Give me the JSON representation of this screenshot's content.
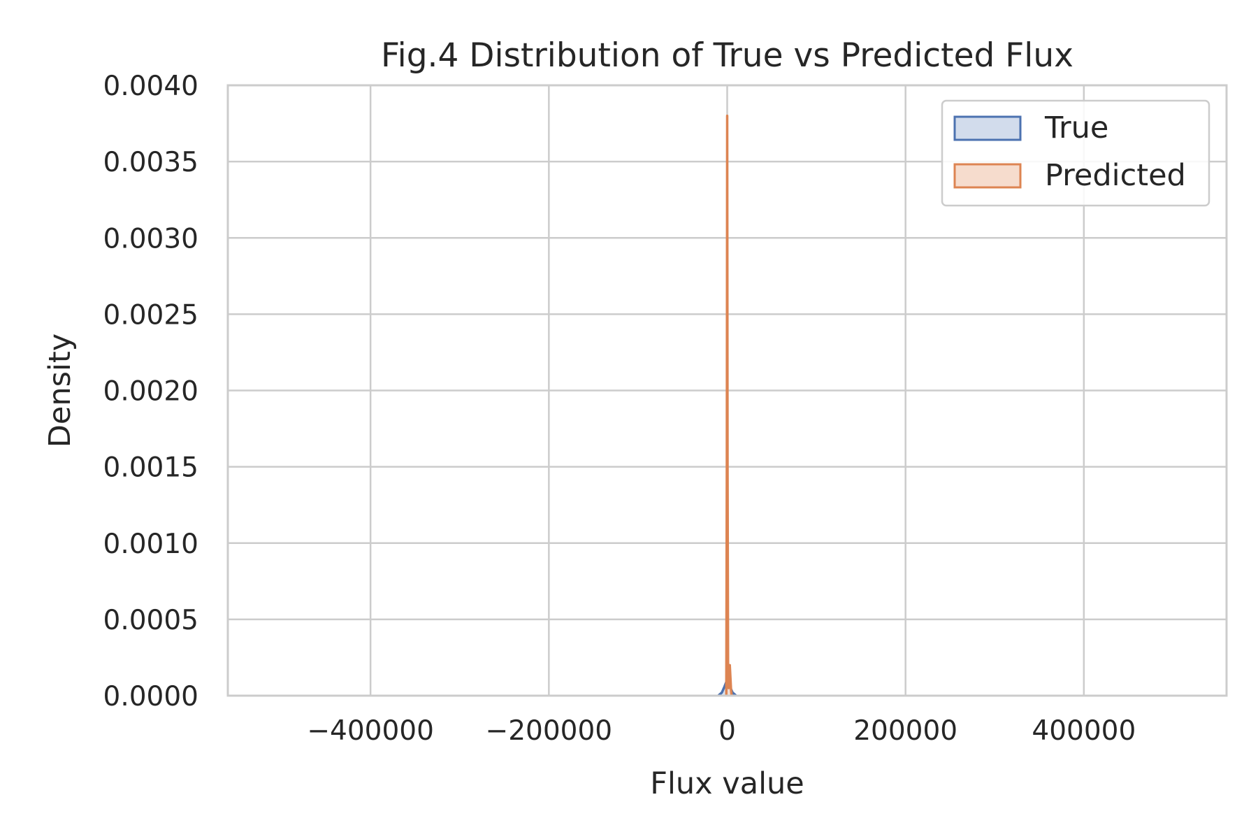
{
  "chart_data": {
    "type": "area",
    "title": "Fig.4 Distribution of True vs Predicted Flux",
    "xlabel": "Flux value",
    "ylabel": "Density",
    "xlim": [
      -560000,
      560000
    ],
    "ylim": [
      0,
      0.004
    ],
    "xticks": [
      -400000,
      -200000,
      0,
      200000,
      400000
    ],
    "xtick_labels": [
      "−400000",
      "−200000",
      "0",
      "200000",
      "400000"
    ],
    "yticks": [
      0,
      0.0005,
      0.001,
      0.0015,
      0.002,
      0.0025,
      0.003,
      0.0035,
      0.004
    ],
    "ytick_labels": [
      "0.0000",
      "0.0005",
      "0.0010",
      "0.0015",
      "0.0020",
      "0.0025",
      "0.0030",
      "0.0035",
      "0.0040"
    ],
    "grid": true,
    "legend_position": "top-right",
    "series": [
      {
        "name": "True",
        "color": "#4c72b0",
        "fill_color": "#d2dcec",
        "x": [
          -10000,
          -6000,
          -3000,
          -1000,
          0,
          1000,
          3000,
          6000,
          10000
        ],
        "y": [
          0,
          2e-05,
          6e-05,
          9e-05,
          0.0001,
          9e-05,
          6e-05,
          2e-05,
          0
        ]
      },
      {
        "name": "Predicted",
        "color": "#dd8452",
        "fill_color": "#f6dccd",
        "x": [
          -1000,
          -400,
          0,
          400,
          1000,
          1700,
          2300,
          2900,
          3600,
          4300,
          5000
        ],
        "y": [
          0,
          0.0015,
          0.0038,
          0.0015,
          0.00012,
          5e-05,
          0.00018,
          0.0002,
          0.00012,
          4e-05,
          0
        ]
      }
    ]
  }
}
